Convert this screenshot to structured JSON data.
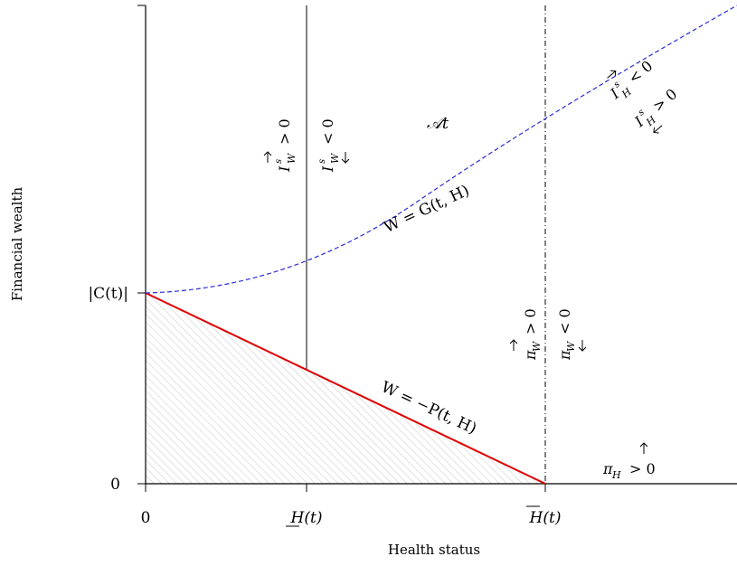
{
  "axes": {
    "y_label": "Financial wealth",
    "x_label": "Health status",
    "y_ticks": {
      "zero": "0",
      "c_abs": "|C(t)|"
    },
    "x_ticks": {
      "zero": "0",
      "h_lower": "H(t)",
      "h_bar": "H(t)"
    }
  },
  "region_label": "𝒜t",
  "curves": {
    "g_label": "W = G(t, H)",
    "p_label": "W = −P(t, H)"
  },
  "conditions": {
    "iw_pos": "I",
    "iw_neg": "I",
    "ih_neg": "I",
    "ih_pos": "I",
    "piw_pos": "π",
    "piw_neg": "π",
    "pih_pos": "π"
  },
  "colors": {
    "g_curve": "#2b2bd9",
    "p_line": "#e00000",
    "hatch": "#c8c8c8"
  }
}
